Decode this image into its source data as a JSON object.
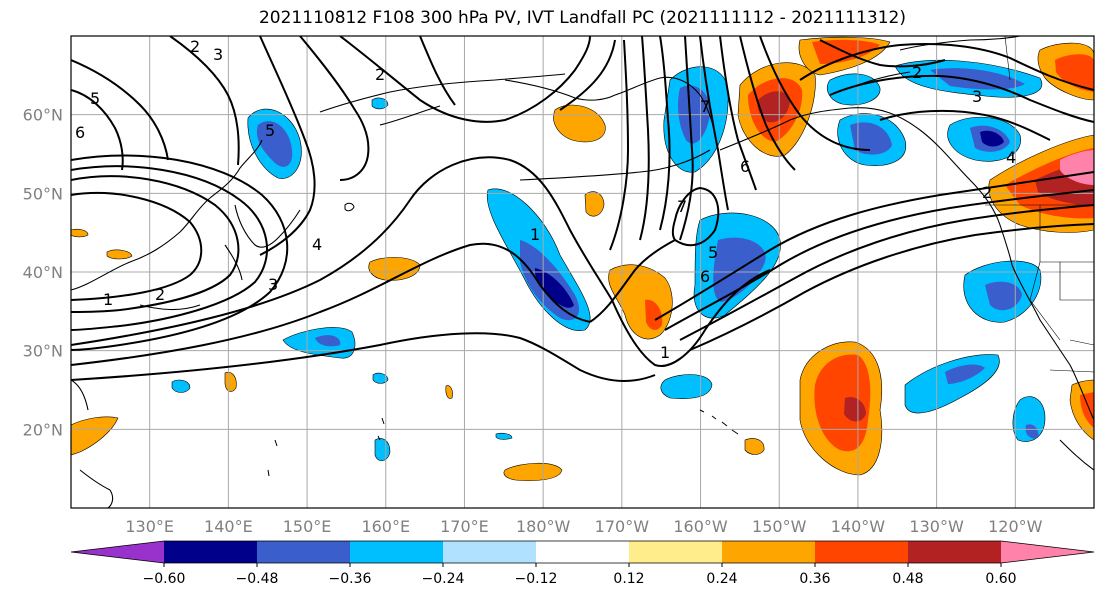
{
  "title": "2021110812 F108 300 hPa PV, IVT Landfall PC (2021111112 - 2021111312)",
  "map": {
    "lon_range": [
      120,
      250
    ],
    "lat_range": [
      10,
      70
    ],
    "lat_ticks": [
      {
        "value": 20,
        "label": "20°N"
      },
      {
        "value": 30,
        "label": "30°N"
      },
      {
        "value": 40,
        "label": "40°N"
      },
      {
        "value": 50,
        "label": "50°N"
      },
      {
        "value": 60,
        "label": "60°N"
      }
    ],
    "lon_ticks": [
      {
        "value": 130,
        "label": "130°E"
      },
      {
        "value": 140,
        "label": "140°E"
      },
      {
        "value": 150,
        "label": "150°E"
      },
      {
        "value": 160,
        "label": "160°E"
      },
      {
        "value": 170,
        "label": "170°E"
      },
      {
        "value": 180,
        "label": "180°W"
      },
      {
        "value": 190,
        "label": "170°W"
      },
      {
        "value": 200,
        "label": "160°W"
      },
      {
        "value": 210,
        "label": "150°W"
      },
      {
        "value": 220,
        "label": "140°W"
      },
      {
        "value": 230,
        "label": "130°W"
      },
      {
        "value": 240,
        "label": "120°W"
      }
    ],
    "contour_labels": [
      "1",
      "2",
      "3",
      "4",
      "5",
      "6",
      "7"
    ]
  },
  "colorbar": {
    "levels": [
      "-0.60",
      "-0.48",
      "-0.36",
      "-0.24",
      "-0.12",
      "0.12",
      "0.24",
      "0.36",
      "0.48",
      "0.60"
    ],
    "colors": [
      "#9932cc",
      "#00008b",
      "#3a5fcd",
      "#00bfff",
      "#b0e2ff",
      "#ffffff",
      "#ffec8b",
      "#ffa500",
      "#ff4500",
      "#b22222",
      "#ff82ab"
    ]
  }
}
